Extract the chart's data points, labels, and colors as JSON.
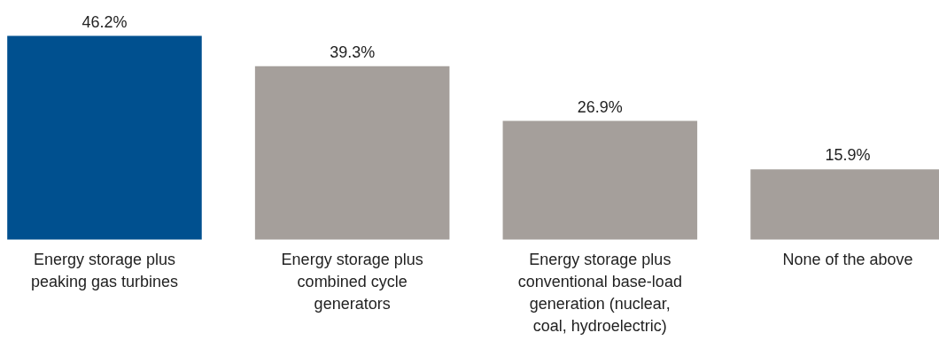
{
  "chart_data": {
    "type": "bar",
    "categories": [
      "Energy storage plus peaking gas turbines",
      "Energy storage plus combined cycle generators",
      "Energy storage plus conventional base-load generation (nuclear, coal, hydroelectric)",
      "None of the above"
    ],
    "values": [
      46.2,
      39.3,
      26.9,
      15.9
    ],
    "colors": [
      "#00508f",
      "#a59f9b",
      "#a59f9b",
      "#a59f9b"
    ],
    "value_labels": [
      "46.2%",
      "39.3%",
      "26.9%",
      "15.9%"
    ],
    "grid": false
  }
}
